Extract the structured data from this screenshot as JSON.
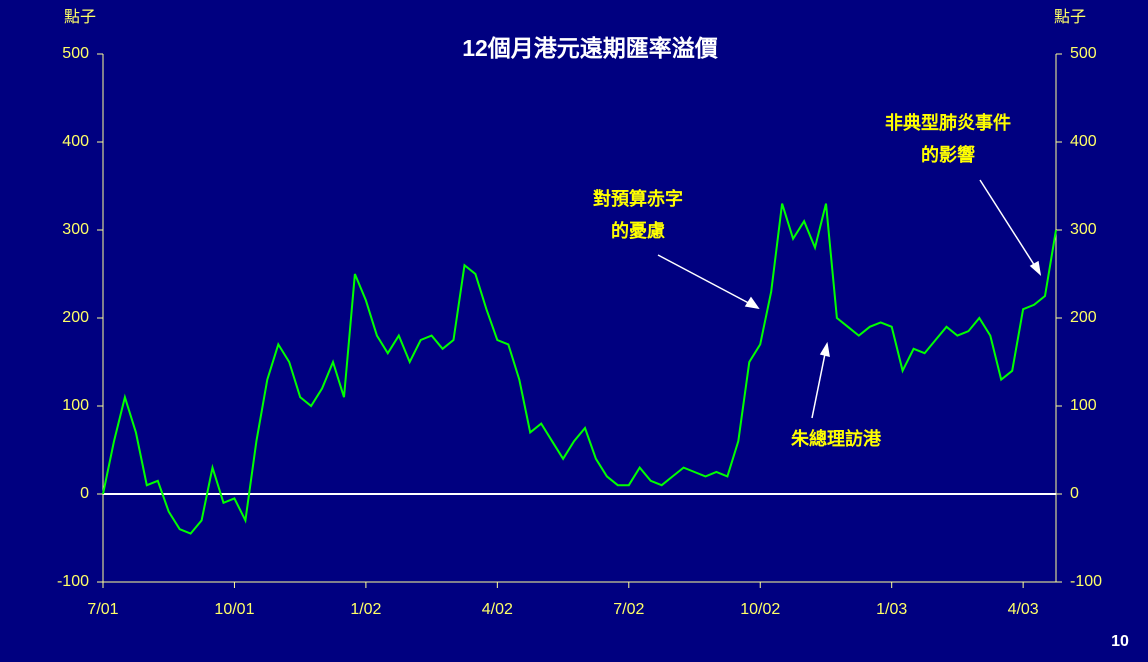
{
  "chart_data": {
    "type": "line",
    "title": "12個月港元遠期匯率溢價",
    "ylabel": "點子",
    "y2label": "點子",
    "page_number": "10",
    "categories": [
      "7/01",
      null,
      null,
      null,
      null,
      null,
      null,
      null,
      null,
      null,
      null,
      null,
      "10/01",
      null,
      null,
      null,
      null,
      null,
      null,
      null,
      null,
      null,
      null,
      null,
      "1/02",
      null,
      null,
      null,
      null,
      null,
      null,
      null,
      null,
      null,
      null,
      null,
      "4/02",
      null,
      null,
      null,
      null,
      null,
      null,
      null,
      null,
      null,
      null,
      null,
      "7/02",
      null,
      null,
      null,
      null,
      null,
      null,
      null,
      null,
      null,
      null,
      null,
      "10/02",
      null,
      null,
      null,
      null,
      null,
      null,
      null,
      null,
      null,
      null,
      null,
      "1/03",
      null,
      null,
      null,
      null,
      null,
      null,
      null,
      null,
      null,
      null,
      null,
      "4/03",
      null,
      null,
      null
    ],
    "series": [
      {
        "color": "#00ff00",
        "values": [
          0,
          60,
          110,
          70,
          10,
          15,
          -20,
          -40,
          -45,
          -30,
          30,
          -10,
          -5,
          -30,
          60,
          130,
          170,
          150,
          110,
          100,
          120,
          150,
          110,
          250,
          220,
          180,
          160,
          180,
          150,
          175,
          180,
          165,
          175,
          260,
          250,
          210,
          175,
          170,
          130,
          70,
          80,
          60,
          40,
          60,
          75,
          40,
          20,
          10,
          10,
          30,
          15,
          10,
          20,
          30,
          25,
          20,
          25,
          20,
          60,
          150,
          170,
          230,
          330,
          290,
          310,
          280,
          330,
          200,
          190,
          180,
          190,
          195,
          190,
          140,
          165,
          160,
          175,
          190,
          180,
          185,
          200,
          180,
          130,
          140,
          210,
          215,
          225,
          300
        ]
      }
    ],
    "ylim": [
      -100,
      500
    ],
    "yticks": [
      -100,
      0,
      100,
      200,
      300,
      400,
      500
    ],
    "y2lim": [
      -100,
      500
    ],
    "y2ticks": [
      -100,
      0,
      100,
      200,
      300,
      400,
      500
    ],
    "zero_line_color": "#ffffff",
    "annotations": [
      {
        "lines": [
          "對預算赤字",
          "的憂慮"
        ]
      },
      {
        "lines": [
          "朱總理訪港"
        ]
      },
      {
        "lines": [
          "非典型肺炎事件",
          "的影響"
        ]
      }
    ]
  }
}
